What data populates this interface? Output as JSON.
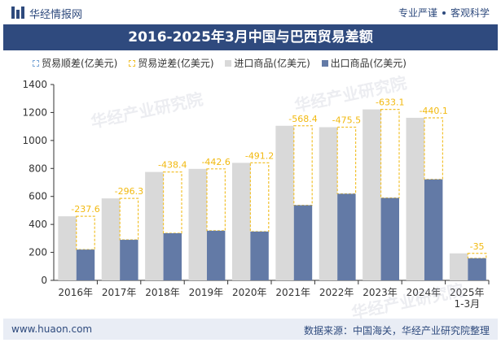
{
  "header": {
    "brand": "华经情报网",
    "tagline_left": "专业严谨",
    "tagline_right": "客观科学"
  },
  "chart_data": {
    "type": "bar",
    "title": "2016-2025年3月中国与巴西贸易差额",
    "categories": [
      "2016年",
      "2017年",
      "2018年",
      "2019年",
      "2020年",
      "2021年",
      "2022年",
      "2023年",
      "2024年",
      "2025年\n1-3月"
    ],
    "series": [
      {
        "name": "贸易顺差(亿美元)",
        "values": [
          null,
          null,
          null,
          null,
          null,
          null,
          null,
          null,
          null,
          null
        ]
      },
      {
        "name": "贸易逆差(亿美元)",
        "values": [
          -237.6,
          -296.3,
          -438.4,
          -442.6,
          -491.2,
          -568.4,
          -475.5,
          -633.1,
          -440.1,
          -35
        ]
      },
      {
        "name": "进口商品(亿美元)",
        "values": [
          458,
          586,
          775,
          797,
          840,
          1105,
          1095,
          1222,
          1162,
          193
        ]
      },
      {
        "name": "出口商品(亿美元)",
        "values": [
          220,
          290,
          337,
          355,
          349,
          537,
          619,
          589,
          722,
          158
        ]
      }
    ],
    "data_labels": [
      "-237.6",
      "-296.3",
      "-438.4",
      "-442.6",
      "-491.2",
      "-568.4",
      "-475.5",
      "-633.1",
      "-440.1",
      "-35"
    ],
    "ylim": [
      0,
      1400
    ],
    "yticks": [
      0,
      200,
      400,
      600,
      800,
      1000,
      1200,
      1400
    ],
    "grid": false,
    "legend": "top",
    "colors": {
      "surplus": "#7aa6d6",
      "deficit": "#f2c12e",
      "import": "#d9d9d9",
      "export": "#637aa6",
      "label": "#f2b90f"
    }
  },
  "footer": {
    "site": "www.huaon.com",
    "source": "数据来源：中国海关，华经产业研究院整理"
  }
}
